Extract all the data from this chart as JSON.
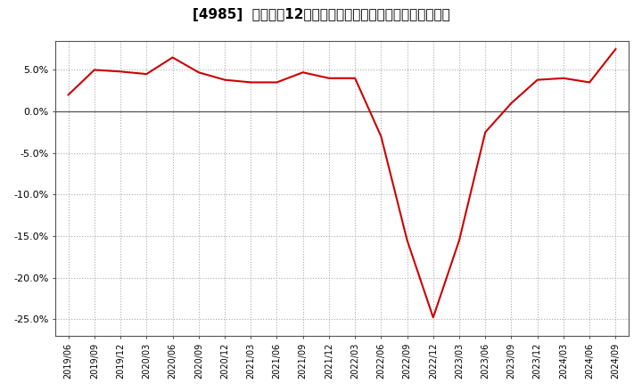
{
  "title": "[4985]  売上高の12か月移動合計の対前年同期増減率の推移",
  "line_color": "#cc0000",
  "background_color": "#ffffff",
  "plot_bg_color": "#ffffff",
  "grid_color": "#aaaaaa",
  "ylim": [
    -0.27,
    0.085
  ],
  "yticks": [
    -0.25,
    -0.2,
    -0.15,
    -0.1,
    -0.05,
    0.0,
    0.05
  ],
  "dates": [
    "2019/06",
    "2019/09",
    "2019/12",
    "2020/03",
    "2020/06",
    "2020/09",
    "2020/12",
    "2021/03",
    "2021/06",
    "2021/09",
    "2021/12",
    "2022/03",
    "2022/06",
    "2022/09",
    "2022/12",
    "2023/03",
    "2023/06",
    "2023/09",
    "2023/12",
    "2024/03",
    "2024/06",
    "2024/09"
  ],
  "values": [
    0.02,
    0.05,
    0.048,
    0.045,
    0.065,
    0.047,
    0.038,
    0.035,
    0.035,
    0.047,
    0.04,
    0.04,
    -0.03,
    -0.155,
    -0.248,
    -0.155,
    -0.025,
    0.01,
    0.038,
    0.04,
    0.035,
    0.075
  ],
  "title_fontsize": 11,
  "tick_fontsize": 8,
  "xtick_fontsize": 7
}
